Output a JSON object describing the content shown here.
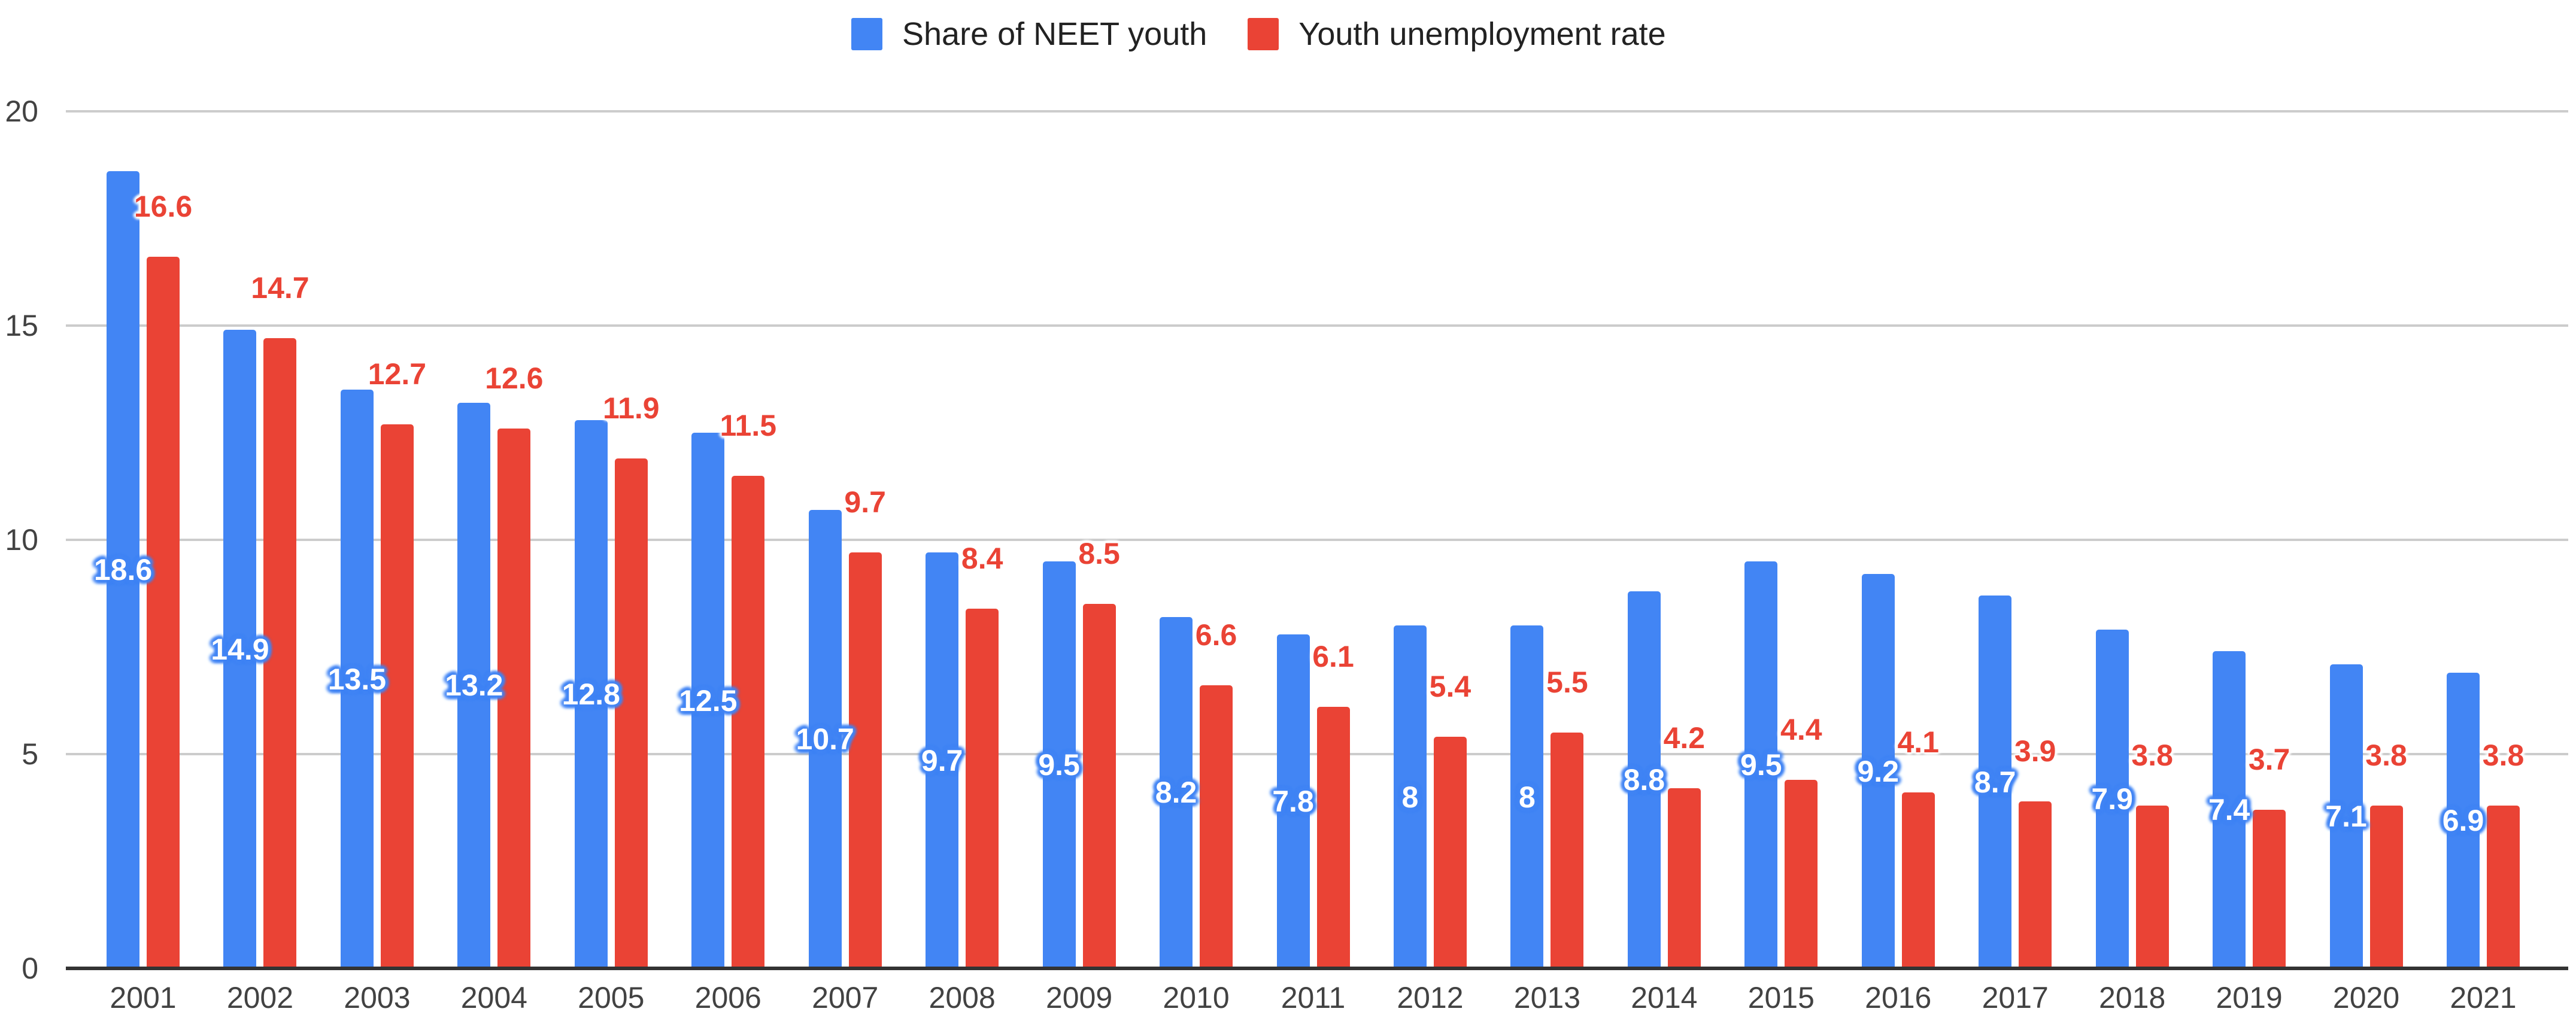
{
  "legend": {
    "items": [
      {
        "label": "Share of NEET youth",
        "color": "#4285F4"
      },
      {
        "label": "Youth unemployment rate",
        "color": "#EA4335"
      }
    ]
  },
  "colors": {
    "series_blue": "#4285F4",
    "series_red": "#EA4335",
    "gridline": "#cccccc",
    "axis_line": "#333333",
    "axis_text": "#424242",
    "legend_text": "#222222",
    "background": "#ffffff"
  },
  "chart_data": {
    "type": "bar",
    "title": "",
    "xlabel": "",
    "ylabel": "",
    "categories": [
      "2001",
      "2002",
      "2003",
      "2004",
      "2005",
      "2006",
      "2007",
      "2008",
      "2009",
      "2010",
      "2011",
      "2012",
      "2013",
      "2014",
      "2015",
      "2016",
      "2017",
      "2018",
      "2019",
      "2020",
      "2021"
    ],
    "series": [
      {
        "name": "Share of NEET youth",
        "color": "#4285F4",
        "values": [
          18.6,
          14.9,
          13.5,
          13.2,
          12.8,
          12.5,
          10.7,
          9.7,
          9.5,
          8.2,
          7.8,
          8,
          8,
          8.8,
          9.5,
          9.2,
          8.7,
          7.9,
          7.4,
          7.1,
          6.9
        ]
      },
      {
        "name": "Youth unemployment rate",
        "color": "#EA4335",
        "values": [
          16.6,
          14.7,
          12.7,
          12.6,
          11.9,
          11.5,
          9.7,
          8.4,
          8.5,
          6.6,
          6.1,
          5.4,
          5.5,
          4.2,
          4.4,
          4.1,
          3.9,
          3.8,
          3.7,
          3.8,
          3.8
        ]
      }
    ],
    "ylim": [
      0,
      20
    ],
    "yticks": [
      0,
      5,
      10,
      15,
      20
    ],
    "grid": true,
    "legend_position": "top",
    "value_labels": "blue labels centered inside bars in white, red labels above bars in series color"
  }
}
